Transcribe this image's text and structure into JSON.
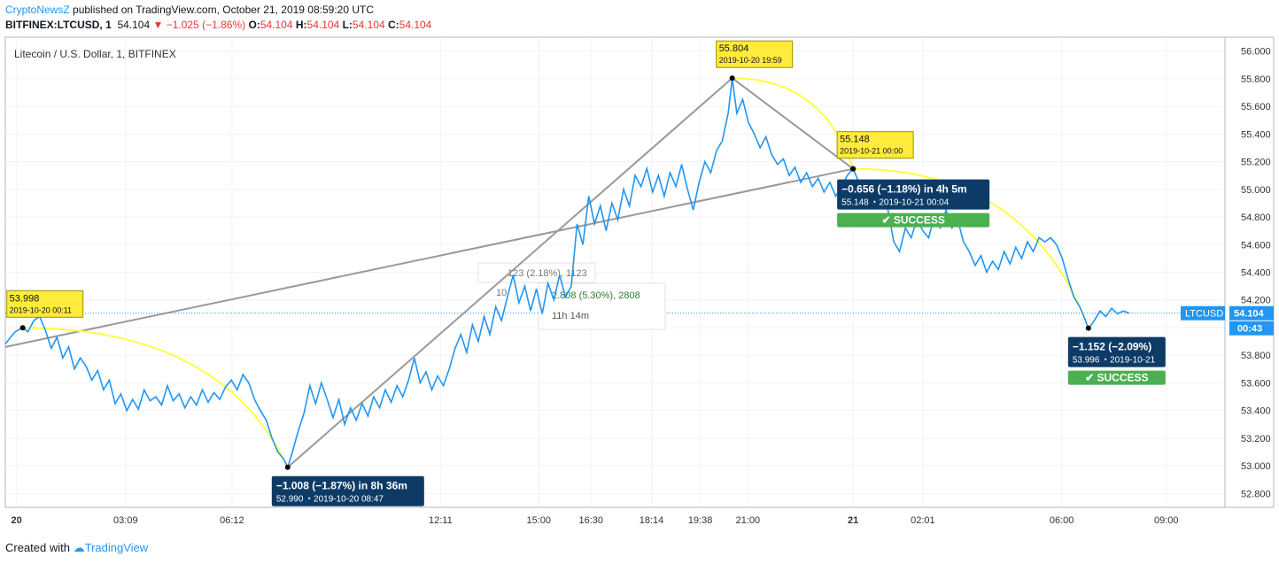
{
  "header": {
    "publisher": "CryptoNewsZ",
    "published_text": " published on TradingView.com, October 21, 2019 08:59:20 UTC",
    "symbol": "BITFINEX:LTCUSD, 1",
    "last": "54.104",
    "change": "−1.025 (−1.86%)",
    "o_label": "O:",
    "o": "54.104",
    "h_label": "H:",
    "h": "54.104",
    "l_label": "L:",
    "l": "54.104",
    "c_label": "C:",
    "c": "54.104"
  },
  "footer": {
    "created_with": "Created with",
    "brand": "TradingView"
  },
  "colors": {
    "line": "#2196f3",
    "trend": "#999999",
    "arc": "#ffff44",
    "callout_bg": "#0d3b66",
    "success": "#4caf50",
    "label_bg": "#ffeb3b",
    "price_tag": "#2196f3",
    "grid": "#f0f3fa"
  },
  "chart_data": {
    "type": "line",
    "title": "Litecoin / U.S. Dollar, 1, BITFINEX",
    "series_name": "LTCUSD",
    "last_price": "54.104",
    "countdown": "00:43",
    "ylim": [
      52.7,
      56.1
    ],
    "y_ticks": [
      "56.000",
      "55.800",
      "55.600",
      "55.400",
      "55.200",
      "55.000",
      "54.800",
      "54.600",
      "54.400",
      "54.200",
      "54.000",
      "53.800",
      "53.600",
      "53.400",
      "53.200",
      "53.000",
      "52.800"
    ],
    "x_tick_labels": [
      {
        "label": "20",
        "t": 0.3,
        "bold": true
      },
      {
        "label": "03:09",
        "t": 188
      },
      {
        "label": "06:12",
        "t": 371
      },
      {
        "label": "12:11",
        "t": 730
      },
      {
        "label": "15:00",
        "t": 899
      },
      {
        "label": "16:30",
        "t": 989
      },
      {
        "label": "18:14",
        "t": 1093
      },
      {
        "label": "19:38",
        "t": 1177
      },
      {
        "label": "21:00",
        "t": 1259
      },
      {
        "label": "21",
        "t": 1440,
        "bold": true
      },
      {
        "label": "02:01",
        "t": 1560
      },
      {
        "label": "06:00",
        "t": 1799
      },
      {
        "label": "09:00",
        "t": 1979
      }
    ],
    "x_range_minutes": [
      -19,
      2080
    ],
    "points": [
      [
        -19,
        53.88
      ],
      [
        -10,
        53.93
      ],
      [
        -2,
        53.97
      ],
      [
        11,
        54.0
      ],
      [
        20,
        53.97
      ],
      [
        30,
        54.05
      ],
      [
        40,
        54.08
      ],
      [
        50,
        53.98
      ],
      [
        60,
        53.85
      ],
      [
        70,
        53.93
      ],
      [
        80,
        53.78
      ],
      [
        90,
        53.86
      ],
      [
        100,
        53.7
      ],
      [
        110,
        53.78
      ],
      [
        120,
        53.72
      ],
      [
        130,
        53.62
      ],
      [
        140,
        53.69
      ],
      [
        150,
        53.55
      ],
      [
        160,
        53.62
      ],
      [
        170,
        53.45
      ],
      [
        180,
        53.52
      ],
      [
        190,
        53.4
      ],
      [
        200,
        53.48
      ],
      [
        210,
        53.41
      ],
      [
        220,
        53.55
      ],
      [
        230,
        53.47
      ],
      [
        240,
        53.5
      ],
      [
        250,
        53.44
      ],
      [
        260,
        53.58
      ],
      [
        270,
        53.47
      ],
      [
        280,
        53.52
      ],
      [
        290,
        53.42
      ],
      [
        300,
        53.5
      ],
      [
        310,
        53.44
      ],
      [
        320,
        53.55
      ],
      [
        330,
        53.46
      ],
      [
        340,
        53.53
      ],
      [
        350,
        53.48
      ],
      [
        360,
        53.57
      ],
      [
        370,
        53.62
      ],
      [
        380,
        53.55
      ],
      [
        390,
        53.66
      ],
      [
        400,
        53.6
      ],
      [
        410,
        53.48
      ],
      [
        420,
        53.4
      ],
      [
        430,
        53.33
      ],
      [
        440,
        53.2
      ],
      [
        450,
        53.1
      ],
      [
        460,
        53.05
      ],
      [
        467,
        52.99
      ],
      [
        475,
        53.1
      ],
      [
        485,
        53.25
      ],
      [
        495,
        53.38
      ],
      [
        505,
        53.58
      ],
      [
        515,
        53.45
      ],
      [
        525,
        53.6
      ],
      [
        535,
        53.48
      ],
      [
        545,
        53.35
      ],
      [
        555,
        53.48
      ],
      [
        565,
        53.3
      ],
      [
        575,
        53.42
      ],
      [
        585,
        53.33
      ],
      [
        595,
        53.45
      ],
      [
        605,
        53.36
      ],
      [
        615,
        53.5
      ],
      [
        625,
        53.42
      ],
      [
        635,
        53.55
      ],
      [
        645,
        53.46
      ],
      [
        655,
        53.58
      ],
      [
        665,
        53.5
      ],
      [
        675,
        53.62
      ],
      [
        685,
        53.78
      ],
      [
        695,
        53.6
      ],
      [
        705,
        53.68
      ],
      [
        715,
        53.55
      ],
      [
        725,
        53.65
      ],
      [
        735,
        53.58
      ],
      [
        745,
        53.7
      ],
      [
        755,
        53.85
      ],
      [
        765,
        53.95
      ],
      [
        775,
        53.82
      ],
      [
        785,
        54.02
      ],
      [
        795,
        53.9
      ],
      [
        805,
        54.08
      ],
      [
        815,
        53.95
      ],
      [
        825,
        54.15
      ],
      [
        835,
        54.05
      ],
      [
        845,
        54.22
      ],
      [
        855,
        54.38
      ],
      [
        865,
        54.18
      ],
      [
        875,
        54.3
      ],
      [
        885,
        54.12
      ],
      [
        895,
        54.28
      ],
      [
        905,
        54.1
      ],
      [
        915,
        54.32
      ],
      [
        925,
        54.2
      ],
      [
        935,
        54.38
      ],
      [
        945,
        54.22
      ],
      [
        955,
        54.3
      ],
      [
        965,
        54.75
      ],
      [
        975,
        54.6
      ],
      [
        985,
        54.95
      ],
      [
        995,
        54.75
      ],
      [
        1005,
        54.88
      ],
      [
        1015,
        54.7
      ],
      [
        1025,
        54.9
      ],
      [
        1035,
        54.78
      ],
      [
        1045,
        55.0
      ],
      [
        1055,
        54.88
      ],
      [
        1065,
        55.1
      ],
      [
        1075,
        55.02
      ],
      [
        1085,
        55.15
      ],
      [
        1095,
        54.98
      ],
      [
        1105,
        55.1
      ],
      [
        1115,
        54.95
      ],
      [
        1125,
        55.12
      ],
      [
        1135,
        55.02
      ],
      [
        1145,
        55.18
      ],
      [
        1155,
        55.0
      ],
      [
        1165,
        54.85
      ],
      [
        1175,
        55.05
      ],
      [
        1185,
        55.2
      ],
      [
        1195,
        55.12
      ],
      [
        1205,
        55.28
      ],
      [
        1215,
        55.35
      ],
      [
        1225,
        55.55
      ],
      [
        1232,
        55.8
      ],
      [
        1240,
        55.55
      ],
      [
        1250,
        55.65
      ],
      [
        1260,
        55.48
      ],
      [
        1270,
        55.4
      ],
      [
        1280,
        55.3
      ],
      [
        1290,
        55.38
      ],
      [
        1300,
        55.25
      ],
      [
        1310,
        55.18
      ],
      [
        1320,
        55.22
      ],
      [
        1330,
        55.1
      ],
      [
        1340,
        55.16
      ],
      [
        1350,
        55.05
      ],
      [
        1360,
        55.12
      ],
      [
        1370,
        55.02
      ],
      [
        1380,
        55.08
      ],
      [
        1390,
        54.98
      ],
      [
        1400,
        55.05
      ],
      [
        1410,
        54.95
      ],
      [
        1420,
        55.02
      ],
      [
        1430,
        55.1
      ],
      [
        1440,
        55.15
      ],
      [
        1450,
        55.05
      ],
      [
        1460,
        54.96
      ],
      [
        1470,
        55.02
      ],
      [
        1480,
        54.9
      ],
      [
        1490,
        54.95
      ],
      [
        1500,
        54.85
      ],
      [
        1510,
        54.62
      ],
      [
        1520,
        54.55
      ],
      [
        1530,
        54.72
      ],
      [
        1540,
        54.65
      ],
      [
        1550,
        54.78
      ],
      [
        1560,
        54.7
      ],
      [
        1570,
        54.65
      ],
      [
        1580,
        54.8
      ],
      [
        1590,
        54.72
      ],
      [
        1600,
        54.85
      ],
      [
        1610,
        54.72
      ],
      [
        1620,
        54.78
      ],
      [
        1630,
        54.62
      ],
      [
        1640,
        54.55
      ],
      [
        1650,
        54.45
      ],
      [
        1660,
        54.52
      ],
      [
        1670,
        54.4
      ],
      [
        1680,
        54.48
      ],
      [
        1690,
        54.42
      ],
      [
        1700,
        54.55
      ],
      [
        1710,
        54.46
      ],
      [
        1720,
        54.58
      ],
      [
        1730,
        54.5
      ],
      [
        1740,
        54.62
      ],
      [
        1750,
        54.55
      ],
      [
        1760,
        54.65
      ],
      [
        1770,
        54.62
      ],
      [
        1780,
        54.65
      ],
      [
        1790,
        54.6
      ],
      [
        1800,
        54.5
      ],
      [
        1810,
        54.35
      ],
      [
        1820,
        54.22
      ],
      [
        1830,
        54.15
      ],
      [
        1840,
        54.05
      ],
      [
        1845,
        53.99
      ],
      [
        1855,
        54.05
      ],
      [
        1865,
        54.12
      ],
      [
        1875,
        54.08
      ],
      [
        1885,
        54.14
      ],
      [
        1895,
        54.1
      ],
      [
        1905,
        54.12
      ],
      [
        1915,
        54.104
      ]
    ],
    "price_labels": [
      {
        "value": "53.998",
        "time": "2019-10-20 00:11",
        "t": 11,
        "p": 53.998
      },
      {
        "value": "55.804",
        "time": "2019-10-20 19:59",
        "t": 1232,
        "p": 55.804
      },
      {
        "value": "55.148",
        "time": "2019-10-21 00:00",
        "t": 1440,
        "p": 55.148
      }
    ],
    "trend_lines": [
      [
        [
          -19,
          53.86
        ],
        [
          1440,
          55.148
        ]
      ],
      [
        [
          467,
          52.99
        ],
        [
          1232,
          55.804
        ]
      ],
      [
        [
          1232,
          55.804
        ],
        [
          1440,
          55.148
        ]
      ]
    ],
    "arcs": [
      {
        "from": [
          11,
          53.998
        ],
        "to": [
          467,
          52.99
        ]
      },
      {
        "from": [
          1232,
          55.804
        ],
        "to": [
          1440,
          55.148
        ]
      },
      {
        "from": [
          1440,
          55.148
        ],
        "to": [
          1845,
          53.996
        ]
      }
    ],
    "callouts": [
      {
        "main": "−1.008 (−1.87%) in 8h 36m",
        "sub": "52.990 ◔ 2019-10-20 08:47",
        "t": 467,
        "p": 52.99
      },
      {
        "main": "−0.656 (−1.18%) in 4h 5m",
        "sub": "55.148 ◔ 2019-10-21 00:04",
        "success": "✔ SUCCESS",
        "t": 1440,
        "p": 55.148
      },
      {
        "main": "−1.152 (−2.09%)",
        "sub": "53.996 ◔ 2019-10-21",
        "success": "✔ SUCCESS",
        "t": 1845,
        "p": 53.996
      }
    ],
    "ruler_label": {
      "line1": "123 (2.18%), 1123",
      "line2": "10",
      "line3": "2.808 (5.30%), 2808",
      "line4": "11h 14m"
    }
  }
}
